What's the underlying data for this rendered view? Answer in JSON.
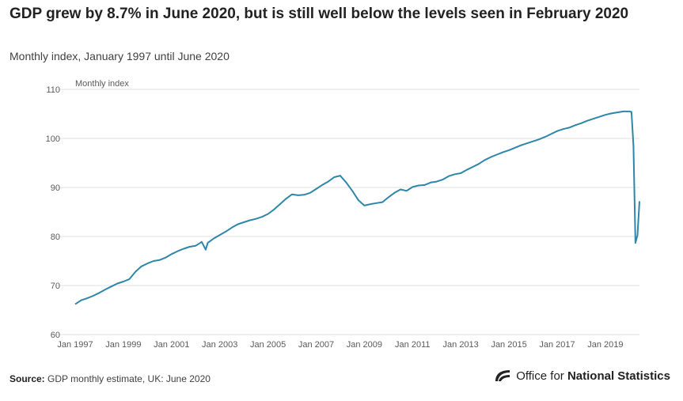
{
  "title": "GDP grew by 8.7% in June 2020, but is still well below the levels seen in February 2020",
  "subtitle": "Monthly index, January 1997 until June 2020",
  "footer": {
    "source_label": "Source:",
    "source_text": "GDP monthly estimate, UK: June 2020",
    "logo_text_light": "Office for ",
    "logo_text_bold": "National Statistics"
  },
  "colors": {
    "line": "#2e86a8",
    "grid": "#e1e1e1",
    "text": "#5a5a5a"
  },
  "chart_data": {
    "type": "line",
    "title": "GDP grew by 8.7% in June 2020, but is still well below the levels seen in February 2020",
    "subtitle": "Monthly index, January 1997 until June 2020",
    "ylabel": "Monthly index",
    "ylim": [
      60,
      110
    ],
    "yticks": [
      60,
      70,
      80,
      90,
      100,
      110
    ],
    "xlim": [
      "1997-01",
      "2020-06"
    ],
    "xticks": [
      "Jan 1997",
      "Jan 1999",
      "Jan 2001",
      "Jan 2003",
      "Jan 2005",
      "Jan 2007",
      "Jan 2009",
      "Jan 2011",
      "Jan 2013",
      "Jan 2015",
      "Jan 2017",
      "Jan 2019"
    ],
    "grid": true,
    "legend": "none",
    "series": [
      {
        "x": [
          "1997-01",
          "1997-04",
          "1997-07",
          "1997-10",
          "1998-01",
          "1998-04",
          "1998-07",
          "1998-10",
          "1999-01",
          "1999-04",
          "1999-07",
          "1999-10",
          "2000-01",
          "2000-04",
          "2000-07",
          "2000-10",
          "2001-01",
          "2001-04",
          "2001-07",
          "2001-10",
          "2002-01",
          "2002-04",
          "2002-06",
          "2002-07",
          "2002-10",
          "2003-01",
          "2003-04",
          "2003-07",
          "2003-10",
          "2004-01",
          "2004-04",
          "2004-07",
          "2004-10",
          "2005-01",
          "2005-04",
          "2005-07",
          "2005-10",
          "2006-01",
          "2006-04",
          "2006-07",
          "2006-10",
          "2007-01",
          "2007-04",
          "2007-07",
          "2007-10",
          "2008-01",
          "2008-04",
          "2008-07",
          "2008-10",
          "2009-01",
          "2009-04",
          "2009-07",
          "2009-10",
          "2010-01",
          "2010-04",
          "2010-07",
          "2010-10",
          "2011-01",
          "2011-04",
          "2011-07",
          "2011-10",
          "2012-01",
          "2012-04",
          "2012-07",
          "2012-10",
          "2013-01",
          "2013-04",
          "2013-07",
          "2013-10",
          "2014-01",
          "2014-04",
          "2014-07",
          "2014-10",
          "2015-01",
          "2015-04",
          "2015-07",
          "2015-10",
          "2016-01",
          "2016-04",
          "2016-07",
          "2016-10",
          "2017-01",
          "2017-04",
          "2017-07",
          "2017-10",
          "2018-01",
          "2018-04",
          "2018-07",
          "2018-10",
          "2019-01",
          "2019-04",
          "2019-07",
          "2019-10",
          "2020-01",
          "2020-02",
          "2020-03",
          "2020-04",
          "2020-05",
          "2020-06"
        ],
        "values": [
          66.2,
          67.0,
          67.4,
          67.9,
          68.5,
          69.2,
          69.8,
          70.4,
          70.8,
          71.3,
          72.8,
          73.9,
          74.5,
          75.0,
          75.2,
          75.7,
          76.4,
          77.0,
          77.5,
          77.9,
          78.1,
          78.9,
          77.3,
          78.7,
          79.6,
          80.3,
          81.0,
          81.8,
          82.5,
          82.9,
          83.3,
          83.6,
          84.0,
          84.6,
          85.5,
          86.6,
          87.7,
          88.6,
          88.4,
          88.5,
          88.9,
          89.7,
          90.5,
          91.2,
          92.1,
          92.4,
          91.0,
          89.3,
          87.4,
          86.3,
          86.6,
          86.8,
          87.0,
          88.0,
          88.9,
          89.6,
          89.3,
          90.1,
          90.4,
          90.5,
          91.0,
          91.2,
          91.6,
          92.3,
          92.7,
          92.9,
          93.6,
          94.2,
          94.8,
          95.6,
          96.2,
          96.7,
          97.2,
          97.6,
          98.1,
          98.6,
          99.0,
          99.4,
          99.8,
          100.3,
          100.9,
          101.5,
          101.9,
          102.2,
          102.7,
          103.1,
          103.6,
          104.0,
          104.4,
          104.8,
          105.1,
          105.3,
          105.5,
          105.5,
          105.4,
          98.5,
          78.7,
          80.3,
          87.2
        ]
      }
    ]
  }
}
